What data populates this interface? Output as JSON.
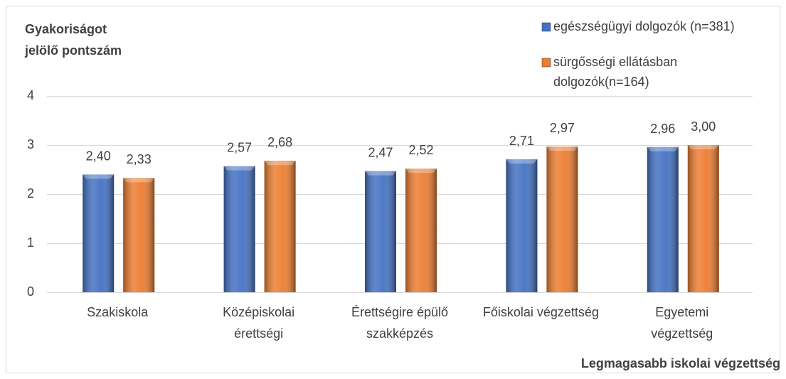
{
  "chart_data": {
    "type": "bar",
    "y_label": "Gyakoriságot\njelölő pontszám",
    "x_label": "Legmagasabb iskolai végzettség",
    "categories": [
      "Szakiskola",
      "Középiskolai\nérettségi",
      "Érettségire épülő\nszakképzés",
      "Főiskolai végzettség",
      "Egyetemi\nvégzettség"
    ],
    "series": [
      {
        "name": "egészségügyi dolgozók (n=381)",
        "color": "#4472c4",
        "values": [
          2.4,
          2.57,
          2.47,
          2.71,
          2.96
        ],
        "value_labels": [
          "2,40",
          "2,57",
          "2,47",
          "2,71",
          "2,96"
        ]
      },
      {
        "name": "sürgősségi ellátásban\ndolgozók(n=164)",
        "color": "#ed7d31",
        "values": [
          2.33,
          2.68,
          2.52,
          2.97,
          3.0
        ],
        "value_labels": [
          "2,33",
          "2,68",
          "2,52",
          "2,97",
          "3,00"
        ]
      }
    ],
    "ylim": [
      0,
      4
    ],
    "yticks": [
      0,
      1,
      2,
      3,
      4
    ],
    "grid": true,
    "legend": "top-right"
  }
}
